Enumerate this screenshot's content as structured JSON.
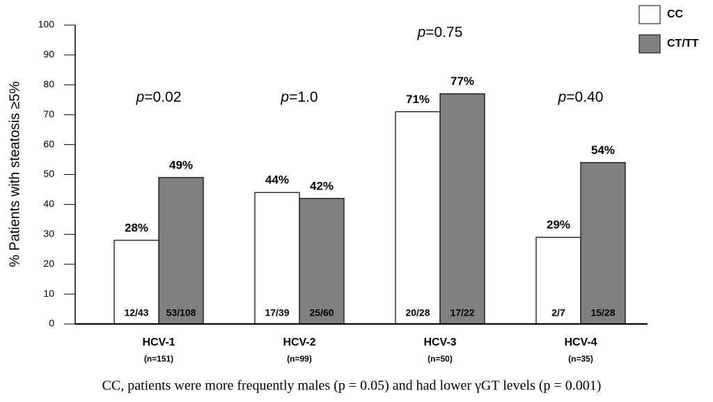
{
  "chart_data": {
    "type": "bar",
    "ylabel": "% Patients with steatosis ≥5%",
    "categories": [
      "HCV-1",
      "HCV-2",
      "HCV-3",
      "HCV-4"
    ],
    "category_notes": [
      "(n=151)",
      "(n=99)",
      "(n=50)",
      "(n=35)"
    ],
    "series": [
      {
        "name": "CC",
        "color": "#ffffff",
        "values": [
          28,
          44,
          71,
          29
        ],
        "value_labels": [
          "28%",
          "44%",
          "71%",
          "29%"
        ],
        "inner_labels": [
          "12/43",
          "17/39",
          "20/28",
          "2/7"
        ]
      },
      {
        "name": "CT/TT",
        "color": "#808080",
        "values": [
          49,
          42,
          77,
          54
        ],
        "value_labels": [
          "49%",
          "42%",
          "77%",
          "54%"
        ],
        "inner_labels": [
          "53/108",
          "25/60",
          "17/22",
          "15/28"
        ]
      }
    ],
    "annotations": [
      "p=0.02",
      "p=1.0",
      "p=0.75",
      "p=0.40"
    ],
    "footnote": "CC, patients were more frequently males (p = 0.05) and had lower γGT levels (p = 0.001)",
    "ylim": [
      0,
      100
    ],
    "yticks": [
      0,
      10,
      20,
      30,
      40,
      50,
      60,
      70,
      80,
      90,
      100
    ],
    "legend": "top-right"
  }
}
